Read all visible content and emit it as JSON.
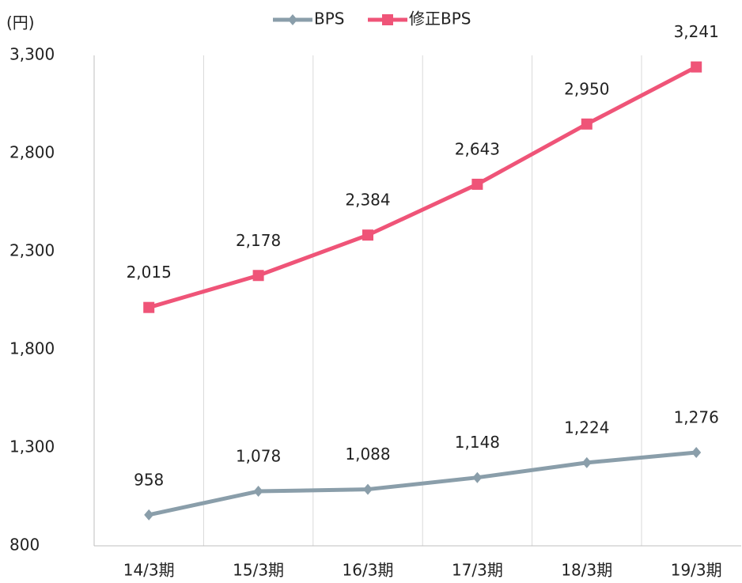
{
  "chart_data": {
    "type": "line",
    "y_unit": "(円)",
    "categories": [
      "14/3期",
      "15/3期",
      "16/3期",
      "17/3期",
      "18/3期",
      "19/3期"
    ],
    "series": [
      {
        "name": "BPS",
        "color": "#8a9eaa",
        "marker": "diamond",
        "values": [
          958,
          1078,
          1088,
          1148,
          1224,
          1276
        ],
        "value_labels": [
          "958",
          "1,078",
          "1,088",
          "1,148",
          "1,224",
          "1,276"
        ]
      },
      {
        "name": "修正BPS",
        "color": "#ef5478",
        "marker": "square",
        "values": [
          2015,
          2178,
          2384,
          2643,
          2950,
          3241
        ],
        "value_labels": [
          "2,015",
          "2,178",
          "2,384",
          "2,643",
          "2,950",
          "3,241"
        ]
      }
    ],
    "ylim": [
      800,
      3300
    ],
    "yticks": [
      800,
      {
        "value": 1300,
        "label": "1,300"
      },
      {
        "value": 1800,
        "label": "1,800"
      },
      {
        "value": 2300,
        "label": "2,300"
      },
      {
        "value": 2800,
        "label": "2,800"
      },
      {
        "value": 3300,
        "label": "3,300"
      }
    ],
    "grid": "vertical",
    "legend": "top"
  }
}
